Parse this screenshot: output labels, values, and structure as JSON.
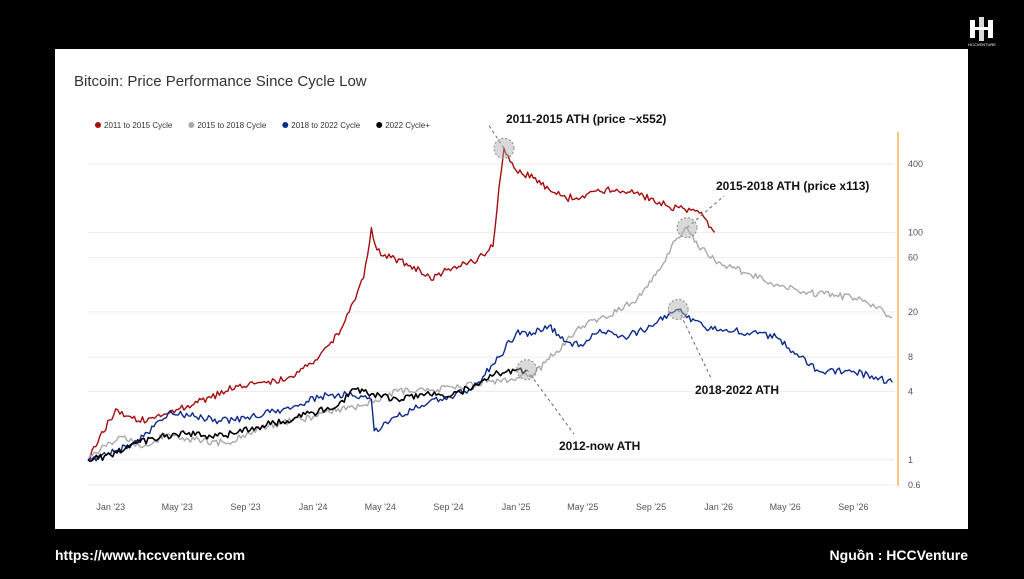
{
  "brand": {
    "logo_icon": "hcc-venture-logo-icon",
    "logo_text": "HCCVENTURE"
  },
  "footer": {
    "url": "https://www.hccventure.com",
    "source": "Nguồn : HCCVenture"
  },
  "chart_data": {
    "type": "line",
    "title": "Bitcoin: Price Performance Since Cycle Low",
    "xlabel": "",
    "ylabel": "",
    "y_scale": "log",
    "ylim": [
      0.6,
      650
    ],
    "xlim": [
      "2022-11-21",
      "2026-11-15"
    ],
    "x_tick_labels": [
      "Jan '23",
      "May '23",
      "Sep '23",
      "Jan '24",
      "May '24",
      "Sep '24",
      "Jan '25",
      "May '25",
      "Sep '25",
      "Jan '26",
      "May '26",
      "Sep '26"
    ],
    "x_ticks": [
      "2023-01-01",
      "2023-05-01",
      "2023-09-01",
      "2024-01-01",
      "2024-05-01",
      "2024-09-01",
      "2025-01-01",
      "2025-05-01",
      "2025-09-01",
      "2026-01-01",
      "2026-05-01",
      "2026-09-01"
    ],
    "y_tick_labels": [
      "0.6",
      "1",
      "4",
      "8",
      "20",
      "60",
      "100",
      "400"
    ],
    "y_ticks": [
      0.6,
      1,
      4,
      8,
      20,
      60,
      100,
      400
    ],
    "grid": "horizontal",
    "legend_position": "top-left",
    "series": [
      {
        "name": "2011 to 2015 Cycle",
        "color": "#a50d0d",
        "x": [
          "2022-11-21",
          "2023-01-10",
          "2023-02-20",
          "2023-04-01",
          "2023-05-20",
          "2023-07-01",
          "2023-08-15",
          "2023-10-01",
          "2023-11-15",
          "2024-01-01",
          "2024-02-20",
          "2024-04-01",
          "2024-04-15",
          "2024-04-25",
          "2024-05-20",
          "2024-07-01",
          "2024-08-01",
          "2024-09-01",
          "2024-10-15",
          "2024-11-20",
          "2024-12-01",
          "2024-12-10",
          "2025-01-01",
          "2025-02-01",
          "2025-03-01",
          "2025-04-01",
          "2025-05-01",
          "2025-06-01",
          "2025-07-01",
          "2025-08-01",
          "2025-09-01",
          "2025-10-01",
          "2025-11-01",
          "2025-12-01",
          "2025-12-25"
        ],
        "values": [
          1.0,
          2.8,
          2.2,
          2.4,
          3.0,
          3.5,
          4.5,
          4.8,
          5.2,
          7.0,
          14,
          40,
          110,
          70,
          60,
          50,
          38,
          48,
          55,
          75,
          250,
          550,
          350,
          300,
          240,
          200,
          210,
          230,
          240,
          220,
          200,
          170,
          160,
          150,
          100
        ]
      },
      {
        "name": "2015 to 2018 Cycle",
        "color": "#a9a9a9",
        "x": [
          "2022-11-21",
          "2023-01-15",
          "2023-03-01",
          "2023-04-15",
          "2023-06-01",
          "2023-08-01",
          "2023-09-15",
          "2023-11-01",
          "2024-01-01",
          "2024-02-15",
          "2024-04-01",
          "2024-06-01",
          "2024-08-01",
          "2024-10-01",
          "2024-12-01",
          "2025-02-01",
          "2025-03-15",
          "2025-05-01",
          "2025-07-01",
          "2025-08-15",
          "2025-09-20",
          "2025-10-15",
          "2025-11-05",
          "2025-11-25",
          "2026-01-01",
          "2026-02-01",
          "2026-03-01",
          "2026-04-15",
          "2026-06-01",
          "2026-08-01",
          "2026-09-15",
          "2026-11-10"
        ],
        "values": [
          1.0,
          1.6,
          1.3,
          1.7,
          1.5,
          1.4,
          1.8,
          2.1,
          2.4,
          2.8,
          3.0,
          4.0,
          4.1,
          4.4,
          5.0,
          5.6,
          9,
          15,
          20,
          28,
          50,
          85,
          110,
          75,
          55,
          48,
          42,
          35,
          30,
          28,
          26,
          18
        ]
      },
      {
        "name": "2018 to 2022 Cycle",
        "color": "#0d2a8c",
        "x": [
          "2022-11-21",
          "2023-01-15",
          "2023-03-01",
          "2023-04-15",
          "2023-06-01",
          "2023-07-15",
          "2023-09-01",
          "2023-10-15",
          "2023-12-01",
          "2024-01-15",
          "2024-03-01",
          "2024-04-15",
          "2024-04-20",
          "2024-06-01",
          "2024-07-15",
          "2024-09-01",
          "2024-10-15",
          "2024-12-01",
          "2025-01-01",
          "2025-02-01",
          "2025-03-01",
          "2025-04-01",
          "2025-05-01",
          "2025-06-01",
          "2025-07-15",
          "2025-09-01",
          "2025-10-20",
          "2025-11-01",
          "2025-12-15",
          "2026-01-15",
          "2026-03-01",
          "2026-04-15",
          "2026-05-15",
          "2026-07-01",
          "2026-09-01",
          "2026-11-10"
        ],
        "values": [
          1.0,
          1.2,
          1.6,
          2.6,
          2.4,
          2.2,
          2.3,
          2.6,
          3.0,
          3.6,
          3.8,
          3.4,
          1.8,
          2.4,
          3.0,
          3.6,
          4.2,
          8,
          13,
          13,
          15,
          11,
          10,
          14,
          12,
          15,
          21,
          19,
          14,
          14,
          13,
          12,
          9,
          6,
          6,
          4.8
        ]
      },
      {
        "name": "2022 Cycle+",
        "color": "#000000",
        "x": [
          "2022-11-21",
          "2023-01-01",
          "2023-02-15",
          "2023-04-01",
          "2023-05-15",
          "2023-07-01",
          "2023-08-15",
          "2023-10-01",
          "2023-11-15",
          "2024-01-01",
          "2024-02-15",
          "2024-03-15",
          "2024-04-15",
          "2024-06-01",
          "2024-07-15",
          "2024-09-01",
          "2024-10-15",
          "2024-11-15",
          "2024-12-15",
          "2025-01-20"
        ],
        "values": [
          1.0,
          1.1,
          1.4,
          1.6,
          1.7,
          1.6,
          1.7,
          2.0,
          2.2,
          2.6,
          3.0,
          4.2,
          3.8,
          3.4,
          3.8,
          3.6,
          4.4,
          5.6,
          6.0,
          6.2
        ]
      }
    ],
    "annotations": [
      {
        "text": "2011-2015 ATH (price ~x552)",
        "x": "2024-12-10",
        "y": 550
      },
      {
        "text": "2015-2018 ATH (price x113)",
        "x": "2025-11-05",
        "y": 110
      },
      {
        "text": "2018-2022 ATH",
        "x": "2025-10-20",
        "y": 21
      },
      {
        "text": "2012-now ATH",
        "x": "2025-01-20",
        "y": 6.2
      }
    ]
  }
}
